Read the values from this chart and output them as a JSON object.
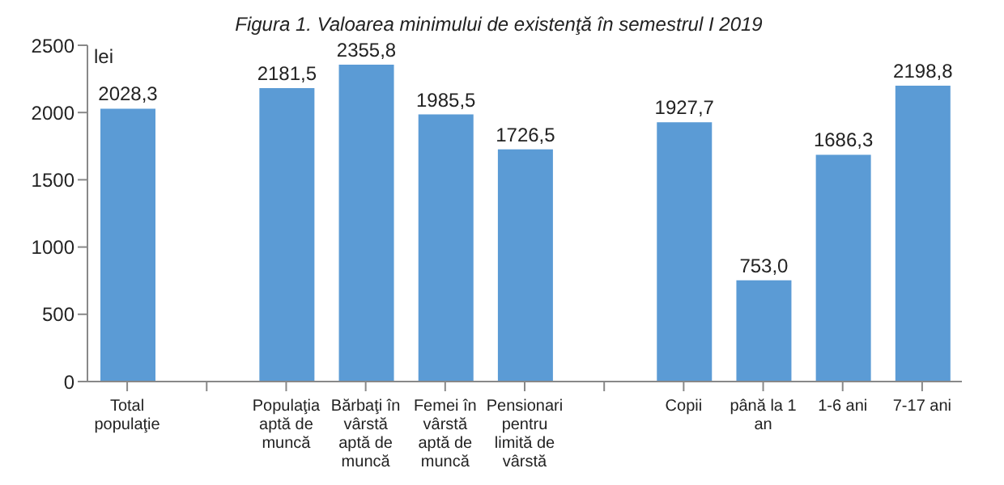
{
  "chart_data": {
    "type": "bar",
    "title": "Figura 1. Valoarea minimului de existenţă în semestrul I 2019",
    "ylabel": "lei",
    "categories": [
      "Total populaţie",
      null,
      "Populaţia aptă de muncă",
      "Bărbaţi în vârstă aptă de muncă",
      "Femei în vârstă aptă de muncă",
      "Pensionari pentru limită de vârstă",
      null,
      "Copii",
      "până la 1 an",
      "1-6 ani",
      "7-17 ani"
    ],
    "values": [
      2028.3,
      null,
      2181.5,
      2355.8,
      1985.5,
      1726.5,
      null,
      1927.7,
      753.0,
      1686.3,
      2198.8
    ],
    "value_labels": [
      "2028,3",
      null,
      "2181,5",
      "2355,8",
      "1985,5",
      "1726,5",
      null,
      "1927,7",
      "753,0",
      "1686,3",
      "2198,8"
    ],
    "color": "#5b9bd5",
    "ylim": [
      0,
      2500
    ],
    "yticks": [
      0,
      500,
      1000,
      1500,
      2000,
      2500
    ],
    "grid": false
  }
}
